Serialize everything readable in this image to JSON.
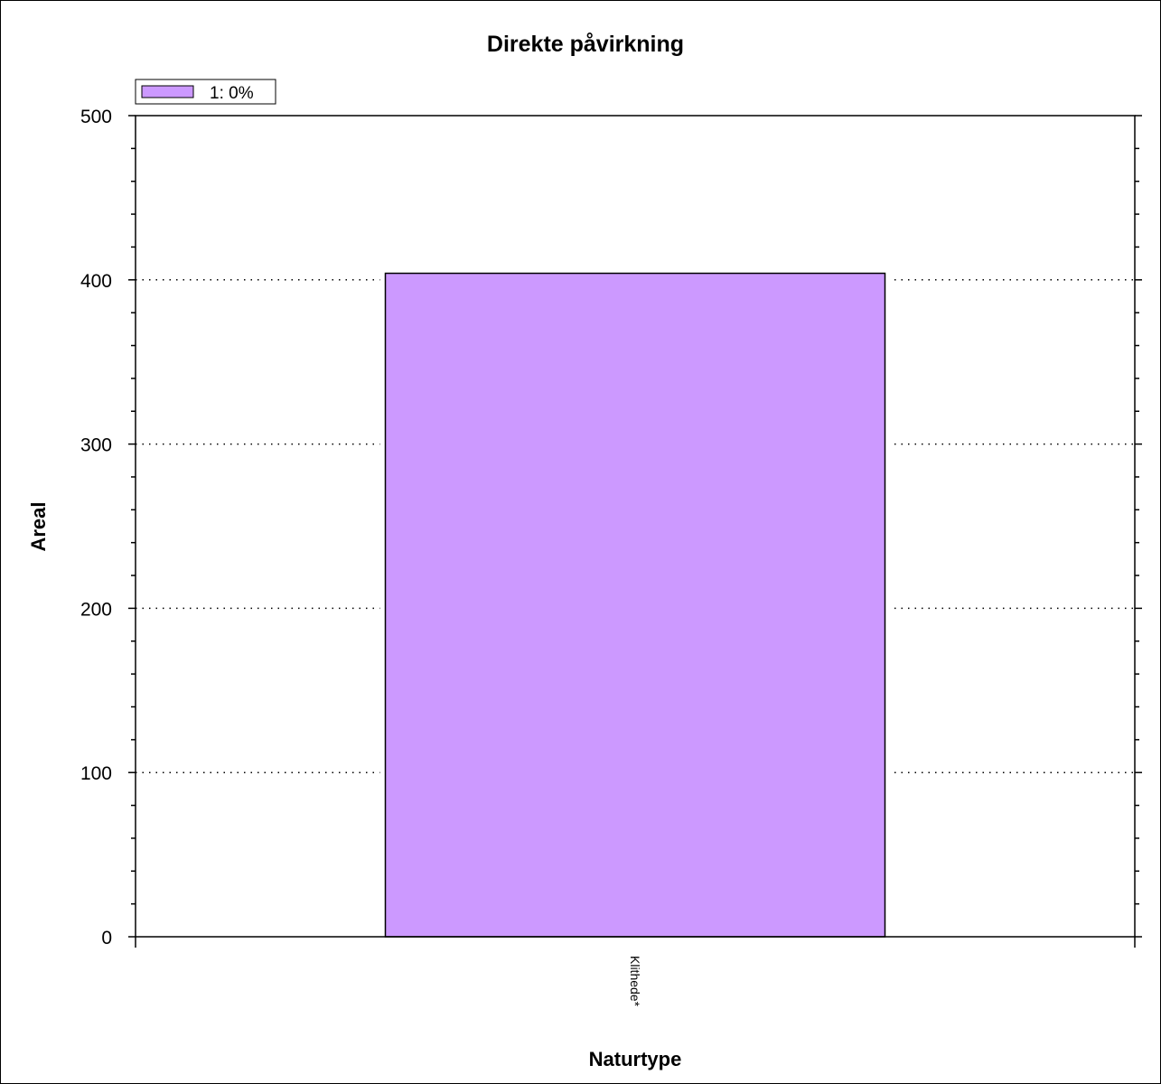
{
  "chart_data": {
    "type": "bar",
    "title": "Direkte påvirkning",
    "xlabel": "Naturtype",
    "ylabel": "Areal",
    "categories": [
      "Klithede*"
    ],
    "series": [
      {
        "name": "1: 0%",
        "values": [
          404
        ],
        "color": "#cc99ff"
      }
    ],
    "ylim": [
      0,
      500
    ],
    "yticks": [
      0,
      100,
      200,
      300,
      400,
      500
    ],
    "yticks_labels": [
      "0",
      "100",
      "200",
      "300",
      "400",
      "500"
    ],
    "grid": "dotted horizontal",
    "legend": "top-left"
  }
}
